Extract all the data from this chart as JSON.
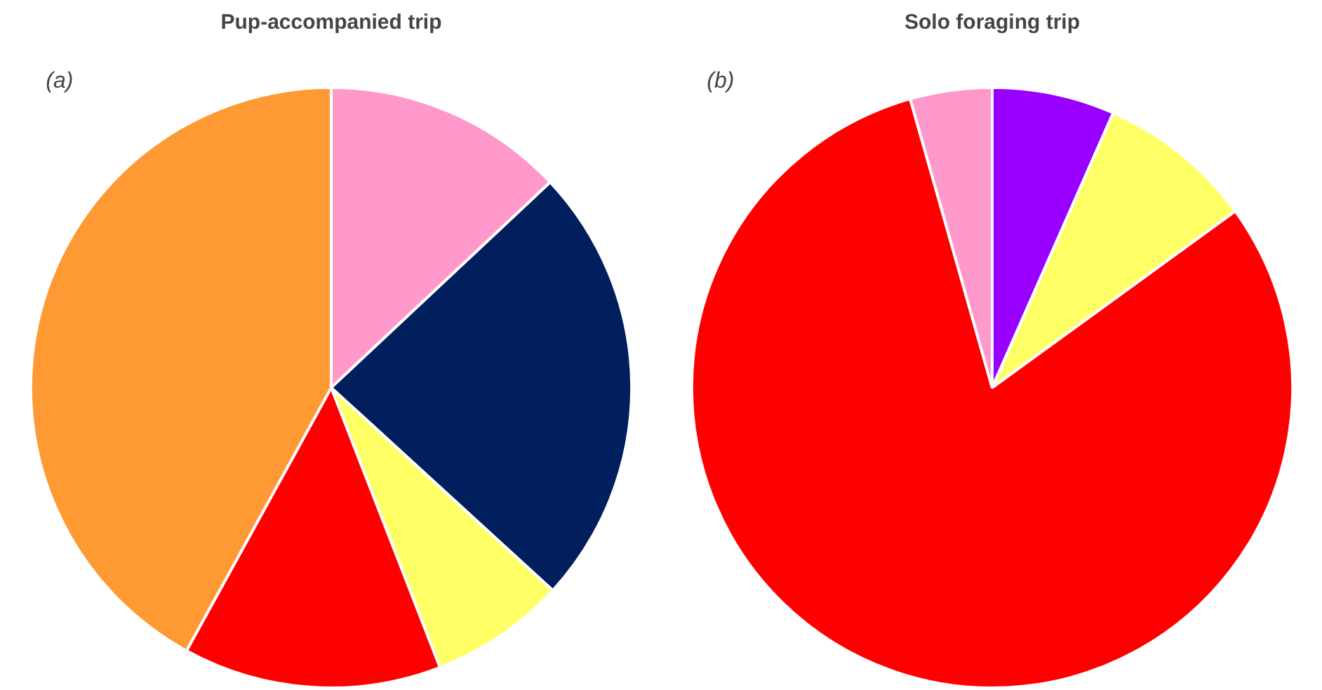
{
  "chart_data": [
    {
      "type": "pie",
      "title": "Pup-accompanied trip",
      "annotations": [
        "(a)"
      ],
      "categories": [
        null,
        null,
        null,
        null,
        null
      ],
      "values": [
        13,
        23.8,
        7.3,
        13.9,
        42
      ],
      "colors": [
        "#ff99cc",
        "#001f5c",
        "#ffff66",
        "#ff0000",
        "#ff9933"
      ]
    },
    {
      "type": "pie",
      "title": "Solo foraging trip",
      "annotations": [
        "(b)"
      ],
      "categories": [
        null,
        null,
        null,
        null
      ],
      "values": [
        6.6,
        8.4,
        80.6,
        4.4
      ],
      "colors": [
        "#9900ff",
        "#ffff66",
        "#ff0000",
        "#ff99cc"
      ]
    }
  ]
}
